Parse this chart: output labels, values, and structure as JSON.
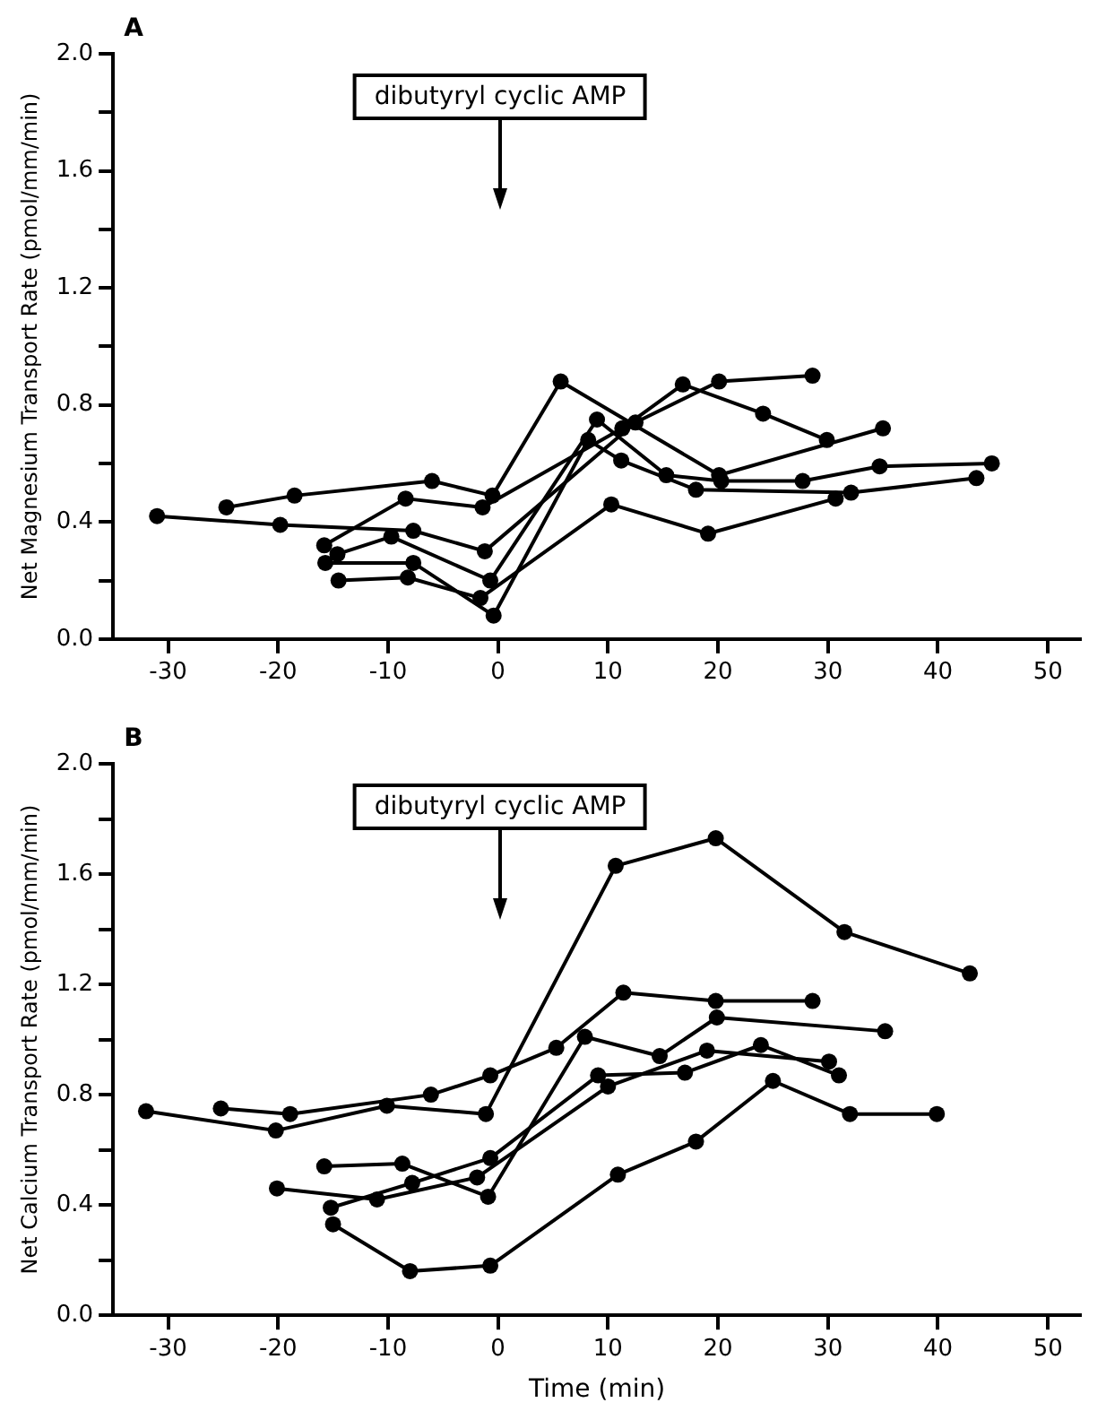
{
  "chart_data": [
    {
      "type": "line",
      "title": "A",
      "ylabel": "Net Magnesium Transport Rate (pmol/mm/min)",
      "annotations": [
        "dibutyryl cyclic AMP"
      ],
      "xlim": [
        -35,
        53
      ],
      "xticks": [
        -30,
        -20,
        -10,
        0,
        10,
        20,
        30,
        40,
        50
      ],
      "ylim": [
        0,
        2
      ],
      "yticks": [
        {
          "value": 0,
          "label": "0.0"
        },
        {
          "value": 0.2,
          "label": null
        },
        0.4,
        {
          "value": 0.6,
          "label": null
        },
        0.8,
        {
          "value": 1.0,
          "label": null
        },
        1.2,
        {
          "value": 1.4,
          "label": null
        },
        1.6,
        {
          "value": 1.8,
          "label": null
        },
        {
          "value": 2,
          "label": "2.0"
        }
      ],
      "grid": false,
      "legend": false,
      "marker": "circle",
      "line_style": "solid",
      "series": [
        {
          "color": "#000000",
          "x": [
            -31,
            -19.8,
            -7.7,
            -1.2,
            12.5,
            20.1,
            28.6
          ],
          "values": [
            0.42,
            0.39,
            0.37,
            0.3,
            0.74,
            0.88,
            0.9
          ]
        },
        {
          "color": "#000000",
          "x": [
            -24.7,
            -18.5,
            -6,
            -0.5,
            5.7,
            20.1,
            35
          ],
          "values": [
            0.45,
            0.49,
            0.54,
            0.49,
            0.88,
            0.56,
            0.72
          ]
        },
        {
          "color": "#000000",
          "x": [
            -15.8,
            -8.4,
            -1.4,
            11.3,
            16.8,
            24.1,
            29.9
          ],
          "values": [
            0.32,
            0.48,
            0.45,
            0.72,
            0.87,
            0.77,
            0.68
          ]
        },
        {
          "color": "#000000",
          "x": [
            -14.6,
            -9.7,
            -0.7,
            9,
            15.3,
            20.3,
            27.7,
            34.7,
            44.9
          ],
          "values": [
            0.29,
            0.35,
            0.2,
            0.75,
            0.56,
            0.54,
            0.54,
            0.59,
            0.6
          ]
        },
        {
          "color": "#000000",
          "x": [
            -15.7,
            -7.7,
            -0.4,
            8.2,
            11.2,
            18,
            32.1,
            43.5
          ],
          "values": [
            0.26,
            0.26,
            0.08,
            0.68,
            0.61,
            0.51,
            0.5,
            0.55
          ]
        },
        {
          "color": "#000000",
          "x": [
            -14.5,
            -8.2,
            -1.6,
            10.3,
            19.1,
            30.7
          ],
          "values": [
            0.2,
            0.21,
            0.14,
            0.46,
            0.36,
            0.48
          ]
        }
      ]
    },
    {
      "type": "line",
      "title": "B",
      "xlabel": "Time (min)",
      "ylabel": "Net Calcium Transport Rate (pmol/mm/min)",
      "annotations": [
        "dibutyryl cyclic AMP"
      ],
      "xlim": [
        -35,
        53
      ],
      "xticks": [
        -30,
        -20,
        -10,
        0,
        10,
        20,
        30,
        40,
        50
      ],
      "ylim": [
        0,
        2
      ],
      "yticks": [
        {
          "value": 0,
          "label": "0.0"
        },
        {
          "value": 0.2,
          "label": null
        },
        0.4,
        {
          "value": 0.6,
          "label": null
        },
        0.8,
        {
          "value": 1.0,
          "label": null
        },
        1.2,
        {
          "value": 1.4,
          "label": null
        },
        1.6,
        {
          "value": 1.8,
          "label": null
        },
        {
          "value": 2,
          "label": "2.0"
        }
      ],
      "grid": false,
      "legend": false,
      "marker": "circle",
      "line_style": "solid",
      "series": [
        {
          "color": "#000000",
          "x": [
            -32,
            -20.2,
            -10.1,
            -1.1,
            10.7,
            19.8,
            31.5,
            42.9
          ],
          "values": [
            0.74,
            0.67,
            0.76,
            0.73,
            1.63,
            1.73,
            1.39,
            1.24
          ]
        },
        {
          "color": "#000000",
          "x": [
            -25.2,
            -18.9,
            -6.1,
            -0.7,
            5.3,
            11.4,
            19.8,
            28.6
          ],
          "values": [
            0.75,
            0.73,
            0.8,
            0.87,
            0.97,
            1.17,
            1.14,
            1.14
          ]
        },
        {
          "color": "#000000",
          "x": [
            -15.8,
            -8.7,
            -0.9,
            7.9,
            14.7,
            19.9,
            35.2
          ],
          "values": [
            0.54,
            0.55,
            0.43,
            1.01,
            0.94,
            1.08,
            1.03
          ]
        },
        {
          "color": "#000000",
          "x": [
            -15.2,
            -7.8,
            -0.7,
            9.1,
            17,
            23.9,
            31
          ],
          "values": [
            0.39,
            0.48,
            0.57,
            0.87,
            0.88,
            0.98,
            0.87
          ]
        },
        {
          "color": "#000000",
          "x": [
            -20.1,
            -11,
            -1.9,
            10,
            19,
            30.1
          ],
          "values": [
            0.46,
            0.42,
            0.5,
            0.83,
            0.96,
            0.92
          ]
        },
        {
          "color": "#000000",
          "x": [
            -15,
            -8,
            -0.7,
            10.9,
            18,
            25,
            32,
            39.9
          ],
          "values": [
            0.33,
            0.16,
            0.18,
            0.51,
            0.63,
            0.85,
            0.73,
            0.73
          ]
        }
      ]
    }
  ]
}
